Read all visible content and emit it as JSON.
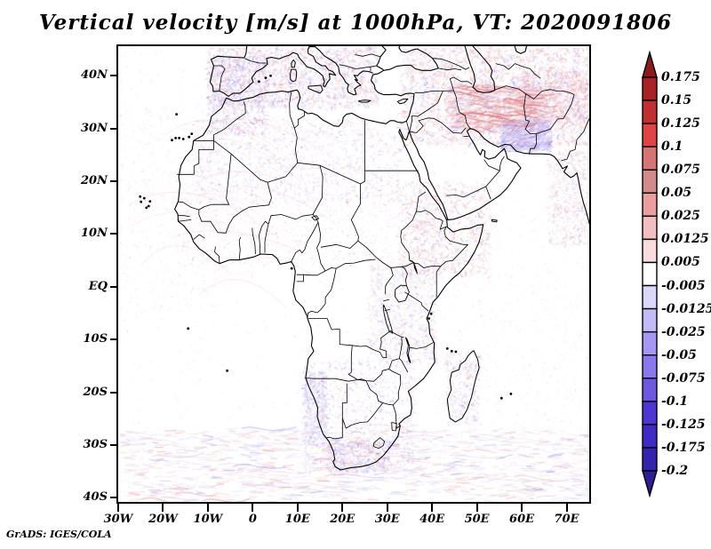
{
  "title": "Vertical velocity [m/s] at 1000hPa, VT: 2020091806",
  "credit": "GrADS: IGES/COLA",
  "axes": {
    "lat_ticks": [
      {
        "label": "40N",
        "lat": 40
      },
      {
        "label": "30N",
        "lat": 30
      },
      {
        "label": "20N",
        "lat": 20
      },
      {
        "label": "10N",
        "lat": 10
      },
      {
        "label": "EQ",
        "lat": 0
      },
      {
        "label": "10S",
        "lat": -10
      },
      {
        "label": "20S",
        "lat": -20
      },
      {
        "label": "30S",
        "lat": -30
      },
      {
        "label": "40S",
        "lat": -40
      }
    ],
    "lon_ticks": [
      {
        "label": "30W",
        "lon": -30
      },
      {
        "label": "20W",
        "lon": -20
      },
      {
        "label": "10W",
        "lon": -10
      },
      {
        "label": "0",
        "lon": 0
      },
      {
        "label": "10E",
        "lon": 10
      },
      {
        "label": "20E",
        "lon": 20
      },
      {
        "label": "30E",
        "lon": 30
      },
      {
        "label": "40E",
        "lon": 40
      },
      {
        "label": "50E",
        "lon": 50
      },
      {
        "label": "60E",
        "lon": 60
      },
      {
        "label": "70E",
        "lon": 70
      }
    ]
  },
  "colorbar": {
    "labels": [
      "0.175",
      "0.15",
      "0.125",
      "0.1",
      "0.075",
      "0.05",
      "0.025",
      "0.0125",
      "0.005",
      "-0.005",
      "-0.0125",
      "-0.025",
      "-0.05",
      "-0.075",
      "-0.1",
      "-0.125",
      "-0.175",
      "-0.2"
    ],
    "segment_colors": [
      "#a82323",
      "#c22f2f",
      "#e04343",
      "#d47474",
      "#d28b8b",
      "#eb9e9e",
      "#f3bebe",
      "#fadcdc",
      "#ffffff",
      "#d9d7fa",
      "#c1bcf7",
      "#a698f2",
      "#8a77ec",
      "#6e58e2",
      "#4c35d3",
      "#3e2ac4",
      "#3424ad"
    ],
    "arrow_top_color": "#8e1b1b",
    "arrow_bottom_color": "#2c1d9b"
  },
  "chart_data": {
    "type": "heatmap",
    "title": "Vertical velocity [m/s] at 1000hPa, VT: 2020091806",
    "variable": "Vertical velocity",
    "units": "m/s",
    "level": "1000hPa",
    "valid_time": "2020091806",
    "projection": "cylindrical lat-lon map of Africa, Mediterranean, Middle East and western Indian Ocean with coastlines and country borders",
    "xlabel": "longitude",
    "ylabel": "latitude",
    "xlim": [
      "30W",
      "75E"
    ],
    "ylim": [
      "41S",
      "46N"
    ],
    "x_ticks": [
      "30W",
      "20W",
      "10W",
      "0",
      "10E",
      "20E",
      "30E",
      "40E",
      "50E",
      "60E",
      "70E"
    ],
    "y_ticks": [
      "40N",
      "30N",
      "20N",
      "10N",
      "EQ",
      "10S",
      "20S",
      "30S",
      "40S"
    ],
    "colorbar_levels": [
      0.175,
      0.15,
      0.125,
      0.1,
      0.075,
      0.05,
      0.025,
      0.0125,
      0.005,
      -0.005,
      -0.0125,
      -0.025,
      -0.05,
      -0.075,
      -0.1,
      -0.125,
      -0.175,
      -0.2
    ],
    "colorbar_colors_top_to_bottom": [
      "#a82323",
      "#c22f2f",
      "#e04343",
      "#d47474",
      "#d28b8b",
      "#eb9e9e",
      "#f3bebe",
      "#fadcdc",
      "#ffffff",
      "#d9d7fa",
      "#c1bcf7",
      "#a698f2",
      "#8a77ec",
      "#6e58e2",
      "#4c35d3",
      "#3e2ac4",
      "#3424ad"
    ],
    "colorbar_position": "right",
    "grid": false,
    "visible_pattern": "fine speckled positive (red) and negative (blue) vertical-velocity noise; strongest mixed red/blue mottling over Iberia, the Mediterranean, Turkey, the Zagros/Iran region (dense red streaks with a strong blue patch over SE Iran/Pakistan), red streaks along the Red Sea and Horn of Africa, blue speckle over the Sahara, Namib coast and South Africa, and wavy red/blue storm-track streaks across the Southern Ocean; interiors of land masses mostly near-zero (white)",
    "annotation": "GrADS: IGES/COLA"
  }
}
